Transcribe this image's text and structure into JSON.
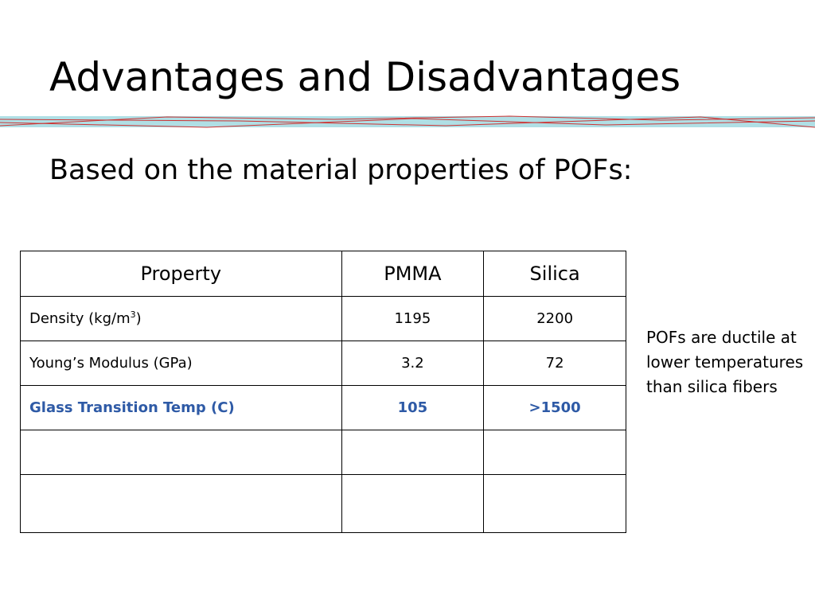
{
  "slide": {
    "title": "Advantages and Disadvantages",
    "subtitle": "Based on the material properties of POFs:",
    "accent_colors": {
      "band_fill": "#b0dfe5",
      "band_lines": "#cc3333",
      "highlight_text": "#2e5aa6"
    }
  },
  "table": {
    "headers": [
      "Property",
      "PMMA",
      "Silica"
    ],
    "rows": [
      {
        "property": "Density (kg/m",
        "property_sup": "3",
        "property_suffix": ")",
        "pmma": "1195",
        "silica": "2200"
      },
      {
        "property": "Young’s Modulus (GPa)",
        "pmma": "3.2",
        "silica": "72"
      },
      {
        "property": "Glass Transition Temp (C)",
        "pmma": "105",
        "silica": ">1500"
      },
      {
        "property": "",
        "pmma": "",
        "silica": ""
      },
      {
        "property": "",
        "pmma": "",
        "silica": ""
      }
    ]
  },
  "note": "POFs are ductile at lower temperatures than silica fibers"
}
